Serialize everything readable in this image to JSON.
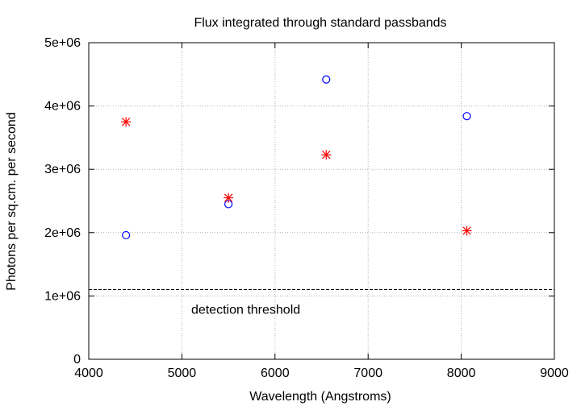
{
  "chart_data": {
    "type": "scatter",
    "title": "Flux integrated through standard passbands",
    "xlabel": "Wavelength (Angstroms)",
    "ylabel": "Photons per sq.cm. per second",
    "xlim": [
      4000,
      9000
    ],
    "ylim": [
      0,
      5000000
    ],
    "x_ticks": [
      {
        "value": 4000,
        "label": "4000"
      },
      {
        "value": 5000,
        "label": "5000"
      },
      {
        "value": 6000,
        "label": "6000"
      },
      {
        "value": 7000,
        "label": "7000"
      },
      {
        "value": 8000,
        "label": "8000"
      },
      {
        "value": 9000,
        "label": "9000"
      }
    ],
    "y_ticks": [
      {
        "value": 0,
        "label": "0"
      },
      {
        "value": 1000000,
        "label": "1e+06"
      },
      {
        "value": 2000000,
        "label": "2e+06"
      },
      {
        "value": 3000000,
        "label": "3e+06"
      },
      {
        "value": 4000000,
        "label": "4e+06"
      },
      {
        "value": 5000000,
        "label": "5e+06"
      }
    ],
    "grid": true,
    "series": [
      {
        "marker": "circle",
        "color": "#0000ff",
        "points": [
          {
            "x": 4400,
            "y": 1960000
          },
          {
            "x": 5500,
            "y": 2450000
          },
          {
            "x": 6550,
            "y": 4420000
          },
          {
            "x": 8060,
            "y": 3840000
          }
        ]
      },
      {
        "marker": "asterisk",
        "color": "#ff0000",
        "points": [
          {
            "x": 4400,
            "y": 3750000
          },
          {
            "x": 5500,
            "y": 2550000
          },
          {
            "x": 6550,
            "y": 3230000
          },
          {
            "x": 8060,
            "y": 2030000
          }
        ]
      }
    ],
    "threshold": {
      "y": 1100000,
      "label": "detection threshold",
      "label_x": 5100,
      "label_y": 780000,
      "color": "#000000"
    }
  }
}
